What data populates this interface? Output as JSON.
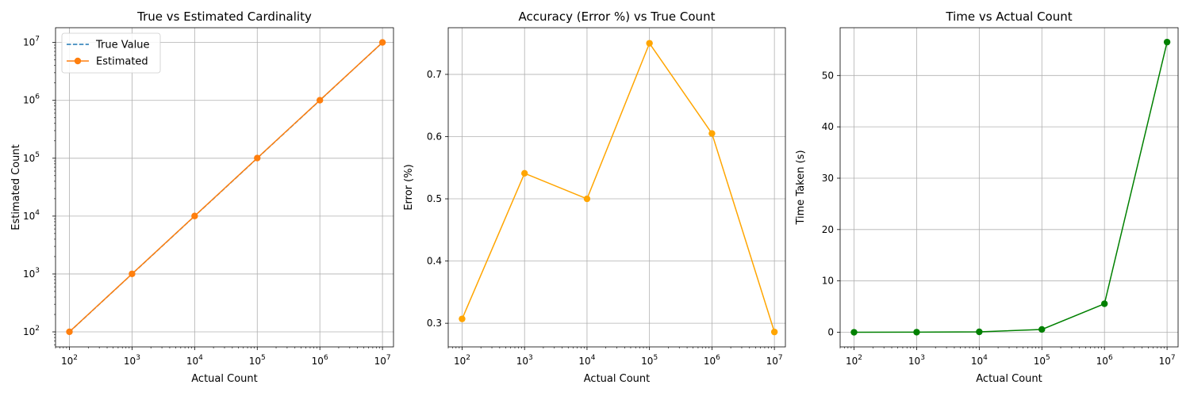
{
  "chart_data": [
    {
      "type": "line",
      "title": "True vs Estimated Cardinality",
      "xlabel": "Actual Count",
      "ylabel": "Estimated Count",
      "xscale": "log",
      "yscale": "log",
      "xlim": [
        60,
        15000000
      ],
      "ylim": [
        55,
        18000000
      ],
      "xticks": [
        100,
        1000,
        10000,
        100000,
        1000000,
        10000000
      ],
      "yticks": [
        100,
        1000,
        10000,
        100000,
        1000000,
        10000000
      ],
      "grid": true,
      "legend": "top-left",
      "x": [
        100,
        1000,
        10000,
        100000,
        1000000,
        10000000
      ],
      "series": [
        {
          "name": "True Value",
          "color": "#1f77b4",
          "style": "dashed",
          "marker": "none",
          "values": [
            100,
            1000,
            10000,
            100000,
            1000000,
            10000000
          ]
        },
        {
          "name": "Estimated",
          "color": "#ff7f0e",
          "style": "solid",
          "marker": "circle",
          "values": [
            100.3,
            1005.4,
            10050,
            100750,
            1006050,
            10028600
          ]
        }
      ]
    },
    {
      "type": "line",
      "title": "Accuracy (Error %) vs True Count",
      "xlabel": "Actual Count",
      "ylabel": "Error (%)",
      "xscale": "log",
      "yscale": "linear",
      "xlim": [
        60,
        15000000
      ],
      "ylim": [
        0.262,
        0.775
      ],
      "xticks": [
        100,
        1000,
        10000,
        100000,
        1000000,
        10000000
      ],
      "yticks": [
        0.3,
        0.4,
        0.5,
        0.6,
        0.7
      ],
      "grid": true,
      "x": [
        100,
        1000,
        10000,
        100000,
        1000000,
        10000000
      ],
      "series": [
        {
          "name": "",
          "color": "#ffa500",
          "style": "solid",
          "marker": "circle",
          "values": [
            0.307,
            0.541,
            0.5,
            0.75,
            0.605,
            0.286
          ]
        }
      ]
    },
    {
      "type": "line",
      "title": "Time vs Actual Count",
      "xlabel": "Actual Count",
      "ylabel": "Time Taken (s)",
      "xscale": "log",
      "yscale": "linear",
      "xlim": [
        60,
        15000000
      ],
      "ylim": [
        -2.85,
        59.3
      ],
      "xticks": [
        100,
        1000,
        10000,
        100000,
        1000000,
        10000000
      ],
      "yticks": [
        0,
        10,
        20,
        30,
        40,
        50
      ],
      "grid": true,
      "x": [
        100,
        1000,
        10000,
        100000,
        1000000,
        10000000
      ],
      "series": [
        {
          "name": "",
          "color": "#008000",
          "style": "solid",
          "marker": "circle",
          "values": [
            0.0,
            0.02,
            0.08,
            0.55,
            5.55,
            56.5
          ]
        }
      ]
    }
  ]
}
